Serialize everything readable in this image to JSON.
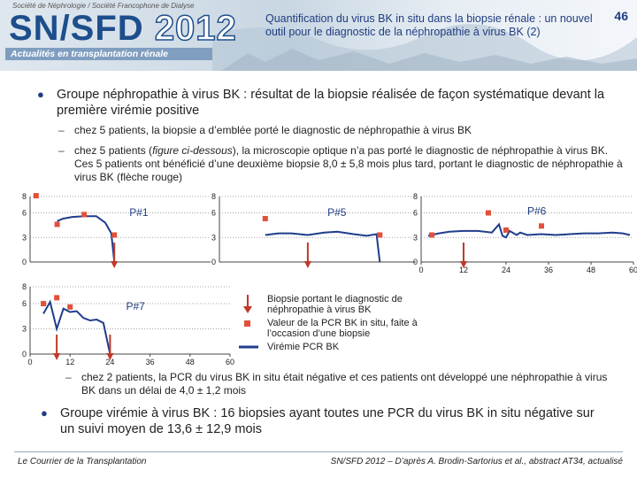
{
  "header": {
    "society": "Société de Néphrologie / Société Francophone de Dialyse",
    "logo_main": "SN/SFD",
    "logo_year": "2012",
    "subtitle": "Actualités en transplantation rénale",
    "slide_title": "Quantification du virus BK in situ dans la biopsie rénale : un nouvel outil pour le diagnostic de la néphropathie à virus BK (2)",
    "slide_number": "46"
  },
  "content": {
    "bullet1_bold": "Groupe néphropathie à virus BK",
    "bullet1_rest": " : résultat de la biopsie réalisée de façon systématique devant la première virémie positive",
    "sub1": "chez 5 patients, la biopsie a d’emblée porté le diagnostic de néphropathie à virus BK",
    "sub2_a": "chez 5 patients (",
    "sub2_fig": "figure ci-dessous",
    "sub2_b": "), la microscopie optique n’a pas porté le diagnostic de néphropathie à virus BK. Ces 5 patients ont bénéficié d’une deuxième biopsie 8,0 ± 5,8 mois plus tard, portant le diagnostic de néphropathie à virus BK (flèche rouge)",
    "sub3": "chez 2 patients, la PCR du virus BK in situ était négative et ces patients ont développé une néphropathie à virus BK dans un délai de 4,0 ± 1,2 mois",
    "bullet2_bold": "Groupe virémie à virus BK",
    "bullet2_rest": " : 16 biopsies ayant toutes une PCR du virus BK in situ négative sur un suivi moyen de 13,6 ± 12,9 mois"
  },
  "legend": {
    "arrow": "Biopsie portant le diagnostic de néphropathie à virus BK",
    "square": "Valeur de la PCR BK in situ, faite à l’occasion d’une biopsie",
    "line": "Virémie PCR BK"
  },
  "colors": {
    "arrow": "#c0392b",
    "square": "#e2503a",
    "line": "#1f3d8c",
    "title": "#1f3d80"
  },
  "chart_data": [
    {
      "type": "line",
      "title": "P#1",
      "yticks": [
        "8",
        "6",
        "3",
        "0"
      ],
      "xticks": [],
      "xlim": [
        0,
        60
      ],
      "ylim": [
        0,
        8
      ],
      "series": [
        {
          "name": "Virémie PCR BK",
          "x": [
            9,
            11,
            14,
            18,
            22,
            25,
            27,
            28
          ],
          "y": [
            5.0,
            5.3,
            5.5,
            5.6,
            5.6,
            4.8,
            3.5,
            0.0
          ]
        }
      ],
      "pcr_in_situ": {
        "x": [
          2,
          9,
          18,
          28
        ],
        "y": [
          8.1,
          4.6,
          5.8,
          3.3
        ]
      },
      "biopsy_arrows": [
        28
      ]
    },
    {
      "type": "line",
      "title": "P#5",
      "yticks": [
        "8",
        "6",
        "3",
        "0"
      ],
      "xticks": [],
      "xlim": [
        0,
        60
      ],
      "ylim": [
        0,
        8
      ],
      "series": [
        {
          "name": "Virémie PCR BK",
          "x": [
            14,
            18,
            22,
            27,
            32,
            36,
            41,
            45,
            48,
            49
          ],
          "y": [
            3.3,
            3.5,
            3.5,
            3.3,
            3.6,
            3.7,
            3.4,
            3.2,
            3.4,
            0.0
          ]
        }
      ],
      "pcr_in_situ": {
        "x": [
          14,
          49
        ],
        "y": [
          5.3,
          3.3
        ]
      },
      "biopsy_arrows": [
        27
      ]
    },
    {
      "type": "line",
      "title": "P#6",
      "yticks": [
        "8",
        "6",
        "3",
        "0"
      ],
      "xticks": [
        "0",
        "12",
        "24",
        "36",
        "48",
        "60"
      ],
      "xlim": [
        0,
        60
      ],
      "ylim": [
        0,
        8
      ],
      "series": [
        {
          "name": "Virémie PCR BK",
          "x": [
            2,
            5,
            8,
            12,
            16,
            20,
            22,
            23,
            24,
            25,
            27,
            28,
            30,
            34,
            38,
            42,
            46,
            50,
            54,
            57,
            59
          ],
          "y": [
            3.2,
            3.5,
            3.7,
            3.8,
            3.8,
            3.6,
            4.6,
            3.2,
            3.0,
            3.8,
            3.3,
            3.6,
            3.3,
            3.4,
            3.3,
            3.4,
            3.5,
            3.5,
            3.6,
            3.5,
            3.3
          ]
        }
      ],
      "pcr_in_situ": {
        "x": [
          3,
          19,
          24,
          34
        ],
        "y": [
          3.3,
          6.0,
          3.9,
          4.4
        ]
      },
      "biopsy_arrows": [
        12
      ]
    },
    {
      "type": "line",
      "title": "P#7",
      "yticks": [
        "8",
        "6",
        "3",
        "0"
      ],
      "xticks": [
        "0",
        "12",
        "24",
        "36",
        "48",
        "60"
      ],
      "xlim": [
        0,
        60
      ],
      "ylim": [
        0,
        8
      ],
      "series": [
        {
          "name": "Virémie PCR BK",
          "x": [
            4,
            6,
            8,
            10,
            12,
            14,
            16,
            18,
            20,
            22,
            24
          ],
          "y": [
            4.8,
            6.2,
            3.0,
            5.4,
            5.0,
            5.1,
            4.3,
            4.0,
            4.1,
            3.7,
            0.0
          ]
        }
      ],
      "pcr_in_situ": {
        "x": [
          4,
          8,
          12
        ],
        "y": [
          6.0,
          6.7,
          5.6
        ]
      },
      "biopsy_arrows": [
        8,
        24
      ]
    }
  ]
}
